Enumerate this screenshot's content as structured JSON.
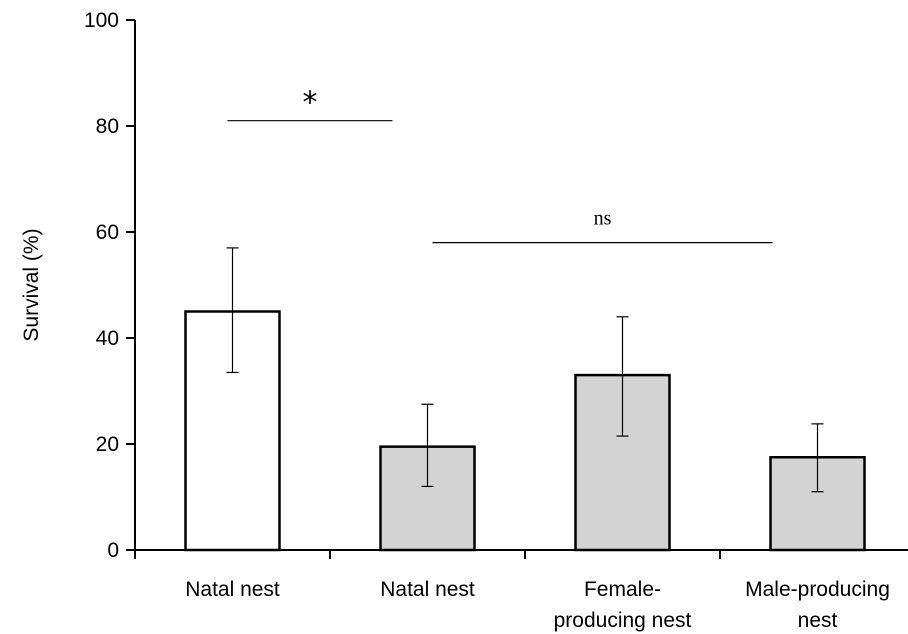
{
  "chart_data": {
    "type": "bar",
    "categories": [
      [
        "Natal nest"
      ],
      [
        "Natal nest"
      ],
      [
        "Female-",
        "producing nest"
      ],
      [
        "Male-producing",
        "nest"
      ]
    ],
    "values": [
      45,
      19.5,
      33,
      17.5
    ],
    "error_low": [
      33.5,
      12,
      21.5,
      11
    ],
    "error_high": [
      57,
      27.5,
      44,
      23.8
    ],
    "fills": [
      "#ffffff",
      "#d3d3d3",
      "#d3d3d3",
      "#d3d3d3"
    ],
    "ylabel": "Survival (%)",
    "ylim": [
      0,
      100
    ],
    "yticks": [
      0,
      20,
      40,
      60,
      80,
      100
    ],
    "grid": false,
    "significance": [
      {
        "label": "*",
        "from": 0,
        "to": 1,
        "y": 81,
        "style": "star"
      },
      {
        "label": "ns",
        "from": 1,
        "to": 3,
        "y": 58,
        "style": "ns"
      }
    ]
  }
}
